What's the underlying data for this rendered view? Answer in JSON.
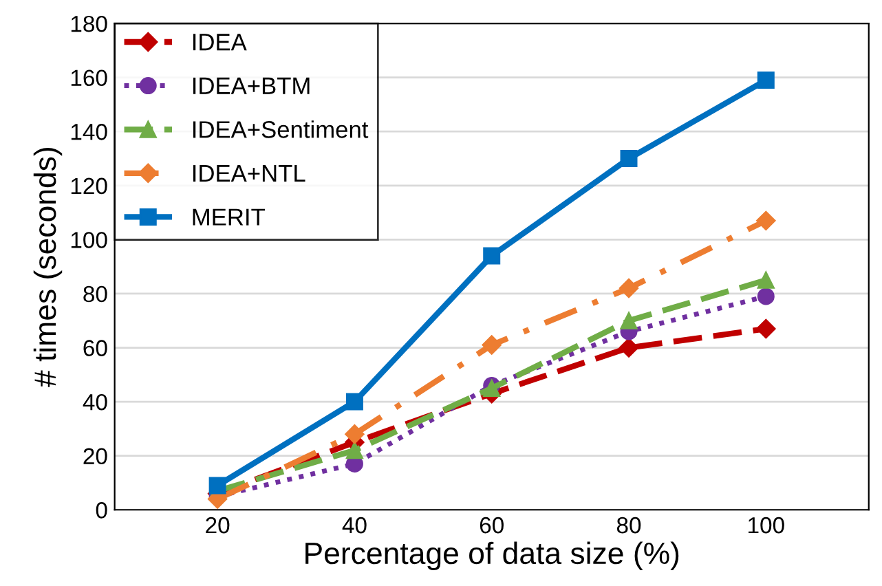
{
  "chart_data": {
    "type": "line",
    "xlabel": "Percentage of data size (%)",
    "ylabel": "# times (seconds)",
    "x": [
      20,
      40,
      60,
      80,
      100
    ],
    "xlim": [
      5,
      115
    ],
    "xticks": [
      20,
      40,
      60,
      80,
      100
    ],
    "ylim": [
      0,
      180
    ],
    "yticks": [
      0,
      20,
      40,
      60,
      80,
      100,
      120,
      140,
      160,
      180
    ],
    "grid": "y",
    "legend": "top left",
    "series": [
      {
        "name": "IDEA",
        "color": "#c00000",
        "marker": "diamond",
        "line_style": "dashed",
        "values": [
          6,
          25,
          43,
          60,
          67
        ]
      },
      {
        "name": "IDEA+BTM",
        "color": "#7030a0",
        "marker": "circle",
        "line_style": "dotted",
        "values": [
          5,
          17,
          46,
          66,
          79
        ]
      },
      {
        "name": "IDEA+Sentiment",
        "color": "#70ad47",
        "marker": "triangle",
        "line_style": "dashed",
        "values": [
          7,
          22,
          45,
          70,
          85
        ]
      },
      {
        "name": "IDEA+NTL",
        "color": "#ed7d31",
        "marker": "diamond",
        "line_style": "dashdot",
        "values": [
          4,
          28,
          61,
          82,
          107
        ]
      },
      {
        "name": "MERIT",
        "color": "#0070c0",
        "marker": "square",
        "line_style": "solid",
        "values": [
          9,
          40,
          94,
          130,
          159
        ]
      }
    ]
  }
}
